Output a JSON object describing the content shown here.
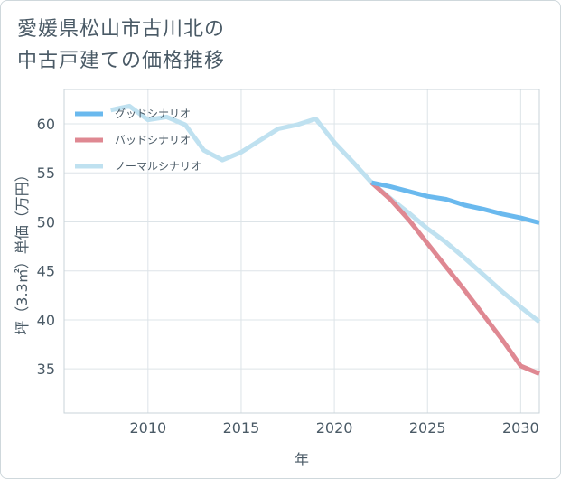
{
  "title_lines": [
    "愛媛県松山市古川北の",
    "中古戸建ての価格推移"
  ],
  "chart_data": {
    "type": "line",
    "xlabel": "年",
    "ylabel": "坪（3.3㎡）単価（万円）",
    "xlim": [
      2005.5,
      2031
    ],
    "ylim": [
      30.5,
      63.5
    ],
    "xticks": [
      2010,
      2015,
      2020,
      2025,
      2030
    ],
    "yticks": [
      35,
      40,
      45,
      50,
      55,
      60
    ],
    "grid": true,
    "legend_position": "top-left",
    "series": [
      {
        "name": "グッドシナリオ",
        "color": "#6ab9ee",
        "points": [
          [
            2022,
            54.0
          ],
          [
            2023,
            53.6
          ],
          [
            2024,
            53.1
          ],
          [
            2025,
            52.6
          ],
          [
            2026,
            52.3
          ],
          [
            2027,
            51.7
          ],
          [
            2028,
            51.3
          ],
          [
            2029,
            50.8
          ],
          [
            2030,
            50.4
          ],
          [
            2031,
            49.9
          ]
        ]
      },
      {
        "name": "バッドシナリオ",
        "color": "#df8892",
        "points": [
          [
            2022,
            54.0
          ],
          [
            2023,
            52.3
          ],
          [
            2024,
            50.2
          ],
          [
            2025,
            47.8
          ],
          [
            2026,
            45.4
          ],
          [
            2027,
            43.0
          ],
          [
            2028,
            40.5
          ],
          [
            2029,
            38.0
          ],
          [
            2030,
            35.3
          ],
          [
            2031,
            34.5
          ]
        ]
      },
      {
        "name": "ノーマルシナリオ",
        "color": "#bfe1f0",
        "points": [
          [
            2008,
            61.4
          ],
          [
            2009,
            61.8
          ],
          [
            2010,
            60.4
          ],
          [
            2011,
            60.7
          ],
          [
            2012,
            59.9
          ],
          [
            2013,
            57.3
          ],
          [
            2014,
            56.3
          ],
          [
            2015,
            57.1
          ],
          [
            2016,
            58.3
          ],
          [
            2017,
            59.5
          ],
          [
            2018,
            59.9
          ],
          [
            2019,
            60.5
          ],
          [
            2020,
            58.1
          ],
          [
            2021,
            56.1
          ],
          [
            2022,
            54.0
          ],
          [
            2023,
            52.4
          ],
          [
            2024,
            50.9
          ],
          [
            2025,
            49.3
          ],
          [
            2026,
            47.9
          ],
          [
            2027,
            46.3
          ],
          [
            2028,
            44.6
          ],
          [
            2029,
            42.9
          ],
          [
            2030,
            41.3
          ],
          [
            2031,
            39.8
          ]
        ]
      }
    ]
  }
}
